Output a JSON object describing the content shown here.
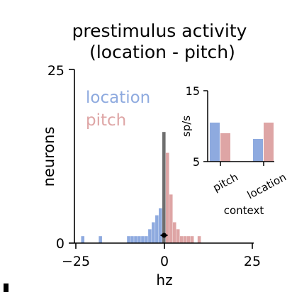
{
  "chart_data": [
    {
      "type": "bar",
      "title_line1": "prestimulus activity",
      "title_line2": "(location - pitch)",
      "xlabel": "hz",
      "ylabel": "neurons",
      "xlim": [
        -25,
        25
      ],
      "ylim": [
        0,
        25
      ],
      "xticks": [
        "−25",
        "0",
        "25"
      ],
      "yticks": [
        "0",
        "25"
      ],
      "bin_width": 1,
      "legend": [
        {
          "name": "location",
          "color": "#8eaadf"
        },
        {
          "name": "pitch",
          "color": "#dea5a5"
        }
      ],
      "colors": {
        "negative": "#8eaadf",
        "positive": "#dea5a5",
        "zero": "#6e6e6e",
        "axis": "#000000"
      },
      "counts": [
        [
          -23,
          1
        ],
        [
          -18,
          1
        ],
        [
          -10,
          1
        ],
        [
          -9,
          1
        ],
        [
          -8,
          1
        ],
        [
          -7,
          1
        ],
        [
          -6,
          1
        ],
        [
          -5,
          1
        ],
        [
          -4,
          2
        ],
        [
          -3,
          3
        ],
        [
          -2,
          4
        ],
        [
          -1,
          5
        ],
        [
          0,
          16
        ],
        [
          1,
          13
        ],
        [
          2,
          7
        ],
        [
          3,
          3
        ],
        [
          4,
          2
        ],
        [
          5,
          1
        ],
        [
          6,
          1
        ],
        [
          7,
          1
        ],
        [
          8,
          1
        ],
        [
          10,
          1
        ]
      ],
      "mean": 0,
      "mean_err": 1
    },
    {
      "type": "bar",
      "xlabel": "context",
      "ylabel": "sp/s",
      "ylim": [
        5,
        15
      ],
      "yticks": [
        "5",
        "15"
      ],
      "categories": [
        "pitch",
        "location"
      ],
      "series": [
        {
          "name": "location",
          "values": [
            10.5,
            8.2
          ],
          "color": "#8eaadf"
        },
        {
          "name": "pitch",
          "values": [
            9.0,
            10.5
          ],
          "color": "#dea5a5"
        }
      ]
    }
  ]
}
